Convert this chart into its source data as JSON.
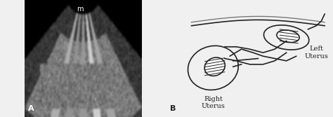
{
  "panel_A_label": "A",
  "panel_B_label": "B",
  "label_m": "m",
  "right_uterus_label": "Right\nUterus",
  "left_uterus_label": "Left\nUterus",
  "bg_color_A": "#000000",
  "bg_color_B": "#f0f0f0",
  "line_color": "#222222",
  "fig_bg": "#f0f0f0",
  "label_fontsize": 7,
  "panel_label_fontsize": 8
}
